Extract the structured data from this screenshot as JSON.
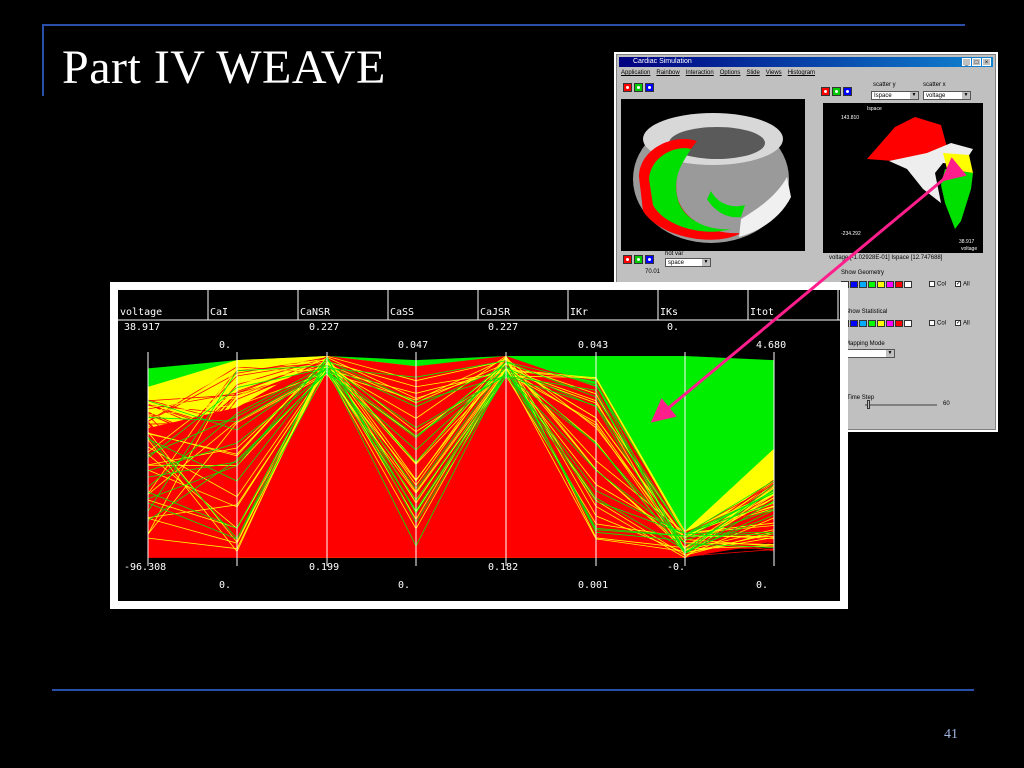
{
  "slide": {
    "title": "Part IV WEAVE",
    "page_number": "41",
    "accent_rule_color": "#2a4fa8"
  },
  "app_window": {
    "title": "Cardiac Simulation",
    "menu": [
      "Application",
      "Rainbow",
      "Interaction",
      "Options",
      "Slide",
      "Views",
      "Histogram"
    ],
    "window_buttons": [
      "_",
      "□",
      "×"
    ],
    "color_buttons": [
      "#ff0000",
      "#00cc00",
      "#0000ff"
    ],
    "scatter_y_label": "scatter y",
    "scatter_x_label": "scatter x",
    "scatter_y_value": "Ispace",
    "scatter_x_value": "voltage",
    "scatter_axis_title": "Ispace",
    "scatter_y_max": "143.810",
    "scatter_y_min": "-234.292",
    "scatter_x_max": "38.917",
    "scatter_x_axis_name": "voltage",
    "hot_var_label": "hot var",
    "hot_var_value": "space",
    "hot_var_tick": "70.01",
    "readout": "voltage  [-1.02928E-01]  Ispace  [12.747688]",
    "show_geometry_label": "Show Geometry",
    "show_statistical_label": "Show Statistical",
    "mapping_mode_label": "Mapping Mode",
    "time_step_label": "Time Step",
    "slider_value": "60",
    "col_label": "Col",
    "all_label": "All",
    "swatch_colors": [
      "#000000",
      "#0000ff",
      "#00aaff",
      "#00ff00",
      "#ffff00",
      "#ff00ff",
      "#ff0000",
      "#ffffff"
    ]
  },
  "chart_data": {
    "type": "parallel_coordinates",
    "axes": [
      {
        "name": "voltage",
        "top": "38.917",
        "bottom": "-96.308"
      },
      {
        "name": "CaI",
        "top": "0.",
        "bottom": "0."
      },
      {
        "name": "CaNSR",
        "top": "0.227",
        "bottom": "0.199"
      },
      {
        "name": "CaSS",
        "top": "0.047",
        "bottom": "0."
      },
      {
        "name": "CaJSR",
        "top": "0.227",
        "bottom": "0.182"
      },
      {
        "name": "IKr",
        "top": "0.043",
        "bottom": "0.001"
      },
      {
        "name": "IKs",
        "top": "0.",
        "bottom": "-0."
      },
      {
        "name": "Itot",
        "top": "4.680",
        "bottom": "0."
      }
    ],
    "cluster_colors": {
      "green": "#00ee00",
      "yellow": "#ffff00",
      "red": "#ff0000"
    }
  }
}
